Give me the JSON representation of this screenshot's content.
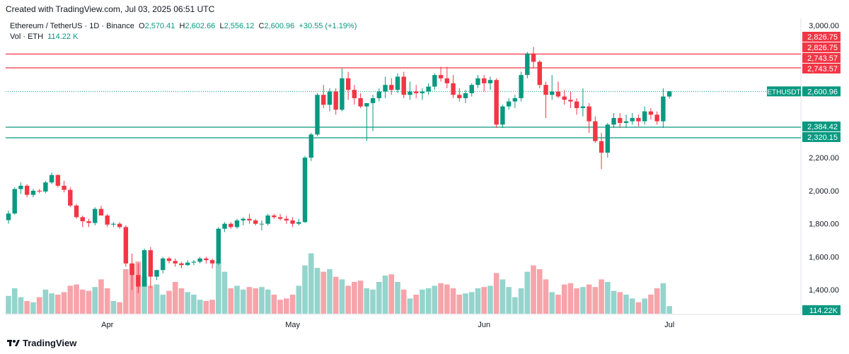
{
  "header": {
    "created": "Created with TradingView.com, Jul 03, 2025 06:51 UTC"
  },
  "legend": {
    "symbol": "Ethereum / TetherUS · 1D · Binance",
    "o_label": "O",
    "o": "2,570.41",
    "h_label": "H",
    "h": "2,602.66",
    "l_label": "L",
    "l": "2,556.12",
    "c_label": "C",
    "c": "2,600.96",
    "change": "+30.55 (+1.19%)",
    "vol_label": "Vol · ETH",
    "vol": "114.22 K"
  },
  "footer": {
    "brand": "TradingView",
    "logo": "tv-logo"
  },
  "colors": {
    "up": "#089981",
    "down": "#f23645",
    "up_vol": "#95d4cc",
    "down_vol": "#f6a4aa"
  },
  "chart_data": {
    "type": "candlestick",
    "symbol": "ETHUSDT",
    "ylim": [
      1250,
      3000
    ],
    "y_ticks": [
      "3,000.00",
      "2,800.00",
      "2,600.00",
      "2,400.00",
      "2,200.00",
      "2,000.00",
      "1,800.00",
      "1,600.00",
      "1,400.00"
    ],
    "y_tick_values": [
      3000,
      2800,
      2600,
      2400,
      2200,
      2000,
      1800,
      1600,
      1400
    ],
    "x_labels": [
      {
        "label": "Apr",
        "index": 16
      },
      {
        "label": "May",
        "index": 46
      },
      {
        "label": "Jun",
        "index": 77
      },
      {
        "label": "Jul",
        "index": 107
      }
    ],
    "horizontal_lines": [
      {
        "value": 2826.75,
        "label": "2,826.75",
        "color": "#f23645",
        "style": "solid"
      },
      {
        "value": 2743.57,
        "label": "2,743.57",
        "color": "#f23645",
        "style": "solid"
      },
      {
        "value": 2384.42,
        "label": "2,384.42",
        "color": "#089981",
        "style": "solid"
      },
      {
        "value": 2320.15,
        "label": "2,320.15",
        "color": "#089981",
        "style": "solid"
      },
      {
        "value": 2600.96,
        "label": "2,600.96",
        "color": "#089981",
        "style": "dotted",
        "tag": "ETHUSDT"
      }
    ],
    "volume_label": "114.22K",
    "ohlc": [
      [
        1822,
        1880,
        1800,
        1862
      ],
      [
        1862,
        2020,
        1855,
        2010
      ],
      [
        2010,
        2050,
        1980,
        2030
      ],
      [
        2030,
        2040,
        1960,
        1975
      ],
      [
        1975,
        2010,
        1960,
        2000
      ],
      [
        2000,
        2010,
        1985,
        1995
      ],
      [
        1995,
        2060,
        1985,
        2050
      ],
      [
        2050,
        2110,
        2040,
        2095
      ],
      [
        2095,
        2100,
        2020,
        2030
      ],
      [
        2030,
        2060,
        1990,
        2005
      ],
      [
        2005,
        2020,
        1900,
        1910
      ],
      [
        1910,
        1920,
        1830,
        1840
      ],
      [
        1840,
        1850,
        1780,
        1815
      ],
      [
        1815,
        1830,
        1780,
        1805
      ],
      [
        1805,
        1900,
        1790,
        1890
      ],
      [
        1890,
        1910,
        1850,
        1850
      ],
      [
        1850,
        1860,
        1780,
        1795
      ],
      [
        1795,
        1810,
        1780,
        1800
      ],
      [
        1800,
        1810,
        1770,
        1780
      ],
      [
        1780,
        1790,
        1540,
        1560
      ],
      [
        1560,
        1620,
        1400,
        1490
      ],
      [
        1490,
        1560,
        1380,
        1420
      ],
      [
        1420,
        1650,
        1420,
        1640
      ],
      [
        1640,
        1660,
        1410,
        1480
      ],
      [
        1480,
        1520,
        1460,
        1520
      ],
      [
        1520,
        1600,
        1500,
        1590
      ],
      [
        1590,
        1600,
        1560,
        1575
      ],
      [
        1575,
        1590,
        1540,
        1560
      ],
      [
        1560,
        1570,
        1530,
        1550
      ],
      [
        1550,
        1580,
        1545,
        1565
      ],
      [
        1565,
        1580,
        1550,
        1570
      ],
      [
        1570,
        1600,
        1560,
        1590
      ],
      [
        1590,
        1600,
        1560,
        1580
      ],
      [
        1580,
        1590,
        1530,
        1560
      ],
      [
        1560,
        1780,
        1550,
        1770
      ],
      [
        1770,
        1810,
        1750,
        1800
      ],
      [
        1800,
        1810,
        1770,
        1780
      ],
      [
        1780,
        1830,
        1770,
        1820
      ],
      [
        1820,
        1840,
        1790,
        1830
      ],
      [
        1830,
        1860,
        1800,
        1820
      ],
      [
        1820,
        1830,
        1790,
        1800
      ],
      [
        1800,
        1820,
        1760,
        1800
      ],
      [
        1800,
        1860,
        1790,
        1850
      ],
      [
        1850,
        1860,
        1830,
        1840
      ],
      [
        1840,
        1860,
        1820,
        1830
      ],
      [
        1830,
        1850,
        1800,
        1820
      ],
      [
        1820,
        1840,
        1780,
        1800
      ],
      [
        1800,
        1830,
        1790,
        1810
      ],
      [
        1810,
        2210,
        1805,
        2200
      ],
      [
        2200,
        2350,
        2180,
        2340
      ],
      [
        2340,
        2590,
        2330,
        2580
      ],
      [
        2580,
        2640,
        2500,
        2520
      ],
      [
        2520,
        2620,
        2480,
        2600
      ],
      [
        2600,
        2620,
        2460,
        2490
      ],
      [
        2490,
        2740,
        2480,
        2680
      ],
      [
        2680,
        2720,
        2550,
        2610
      ],
      [
        2610,
        2640,
        2520,
        2560
      ],
      [
        2560,
        2590,
        2500,
        2510
      ],
      [
        2510,
        2530,
        2300,
        2530
      ],
      [
        2530,
        2580,
        2360,
        2560
      ],
      [
        2560,
        2620,
        2540,
        2600
      ],
      [
        2600,
        2690,
        2560,
        2640
      ],
      [
        2640,
        2680,
        2580,
        2610
      ],
      [
        2610,
        2710,
        2590,
        2690
      ],
      [
        2690,
        2720,
        2560,
        2580
      ],
      [
        2580,
        2660,
        2550,
        2600
      ],
      [
        2600,
        2640,
        2560,
        2590
      ],
      [
        2590,
        2620,
        2550,
        2600
      ],
      [
        2600,
        2650,
        2580,
        2630
      ],
      [
        2630,
        2710,
        2610,
        2700
      ],
      [
        2700,
        2750,
        2660,
        2680
      ],
      [
        2680,
        2750,
        2620,
        2650
      ],
      [
        2650,
        2700,
        2560,
        2580
      ],
      [
        2580,
        2620,
        2540,
        2560
      ],
      [
        2560,
        2610,
        2530,
        2590
      ],
      [
        2590,
        2650,
        2570,
        2640
      ],
      [
        2640,
        2700,
        2620,
        2680
      ],
      [
        2680,
        2700,
        2600,
        2650
      ],
      [
        2650,
        2690,
        2610,
        2670
      ],
      [
        2670,
        2680,
        2380,
        2400
      ],
      [
        2400,
        2520,
        2380,
        2510
      ],
      [
        2510,
        2560,
        2490,
        2540
      ],
      [
        2540,
        2580,
        2500,
        2560
      ],
      [
        2560,
        2720,
        2540,
        2700
      ],
      [
        2700,
        2840,
        2680,
        2830
      ],
      [
        2830,
        2870,
        2740,
        2780
      ],
      [
        2780,
        2790,
        2620,
        2640
      ],
      [
        2640,
        2660,
        2440,
        2580
      ],
      [
        2580,
        2700,
        2550,
        2600
      ],
      [
        2600,
        2660,
        2560,
        2570
      ],
      [
        2570,
        2610,
        2520,
        2550
      ],
      [
        2550,
        2600,
        2500,
        2540
      ],
      [
        2540,
        2560,
        2460,
        2500
      ],
      [
        2500,
        2620,
        2450,
        2510
      ],
      [
        2510,
        2530,
        2350,
        2420
      ],
      [
        2420,
        2450,
        2290,
        2300
      ],
      [
        2300,
        2350,
        2130,
        2230
      ],
      [
        2230,
        2410,
        2200,
        2400
      ],
      [
        2400,
        2470,
        2380,
        2440
      ],
      [
        2440,
        2470,
        2380,
        2410
      ],
      [
        2410,
        2460,
        2380,
        2420
      ],
      [
        2420,
        2470,
        2400,
        2440
      ],
      [
        2440,
        2460,
        2390,
        2420
      ],
      [
        2420,
        2510,
        2400,
        2480
      ],
      [
        2480,
        2500,
        2430,
        2460
      ],
      [
        2460,
        2480,
        2400,
        2420
      ],
      [
        2420,
        2620,
        2380,
        2570
      ],
      [
        2570,
        2603,
        2556,
        2601
      ]
    ],
    "volume": [
      0.28,
      0.4,
      0.26,
      0.2,
      0.18,
      0.26,
      0.38,
      0.32,
      0.3,
      0.34,
      0.44,
      0.46,
      0.38,
      0.36,
      0.42,
      0.54,
      0.4,
      0.2,
      0.18,
      0.7,
      0.78,
      0.82,
      0.58,
      0.44,
      0.46,
      0.3,
      0.36,
      0.5,
      0.4,
      0.34,
      0.3,
      0.22,
      0.2,
      0.22,
      0.82,
      0.66,
      0.4,
      0.44,
      0.38,
      0.42,
      0.4,
      0.42,
      0.38,
      0.3,
      0.22,
      0.24,
      0.3,
      0.44,
      0.76,
      0.95,
      0.72,
      0.66,
      0.7,
      0.58,
      0.54,
      0.44,
      0.5,
      0.52,
      0.4,
      0.38,
      0.5,
      0.6,
      0.62,
      0.5,
      0.38,
      0.24,
      0.3,
      0.38,
      0.4,
      0.44,
      0.48,
      0.46,
      0.4,
      0.3,
      0.32,
      0.34,
      0.4,
      0.42,
      0.44,
      0.64,
      0.54,
      0.42,
      0.26,
      0.4,
      0.66,
      0.76,
      0.7,
      0.54,
      0.34,
      0.3,
      0.46,
      0.48,
      0.4,
      0.42,
      0.46,
      0.42,
      0.54,
      0.5,
      0.36,
      0.34,
      0.3,
      0.24,
      0.18,
      0.24,
      0.3,
      0.4,
      0.48,
      0.12
    ]
  }
}
